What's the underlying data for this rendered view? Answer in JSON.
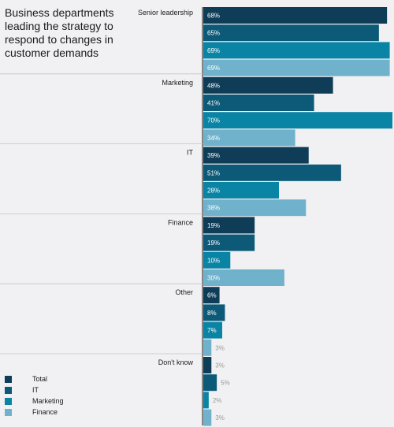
{
  "chart_data": {
    "type": "bar",
    "orientation": "horizontal",
    "title": "Business departments leading the strategy to respond to changes in customer demands",
    "xlabel": "",
    "ylabel": "",
    "xlim": [
      0,
      70
    ],
    "grid": false,
    "legend_position": "bottom-left",
    "categories": [
      "Senior leadership",
      "Marketing",
      "IT",
      "Finance",
      "Other",
      "Don't know"
    ],
    "series": [
      {
        "name": "Total",
        "color": "#0f3d57",
        "values": [
          68,
          48,
          39,
          19,
          6,
          3
        ]
      },
      {
        "name": "IT",
        "color": "#0d5a78",
        "values": [
          65,
          41,
          51,
          19,
          8,
          5
        ]
      },
      {
        "name": "Marketing",
        "color": "#0a84a4",
        "values": [
          69,
          70,
          28,
          10,
          7,
          2
        ]
      },
      {
        "name": "Finance",
        "color": "#70b2cb",
        "values": [
          69,
          34,
          38,
          30,
          3,
          3
        ]
      }
    ],
    "value_suffix": "%"
  }
}
